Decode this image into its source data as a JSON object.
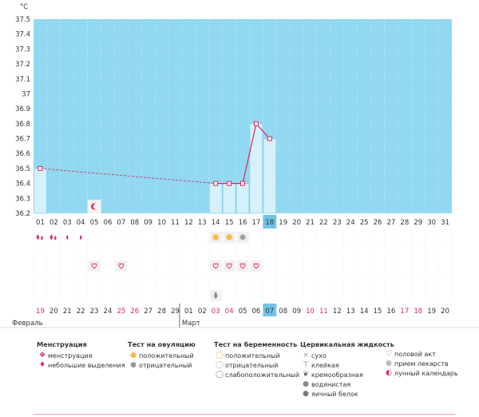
{
  "chart_data": {
    "type": "bar",
    "unit": "°C",
    "ylim": [
      36.2,
      37.5
    ],
    "y_ticks": [
      "37.5",
      "37.4",
      "37.3",
      "37.2",
      "37.1",
      "37",
      "36.9",
      "36.8",
      "36.7",
      "36.6",
      "36.5",
      "36.4",
      "36.3",
      "36.2"
    ],
    "threshold": 37.5,
    "cycle_days": [
      "01",
      "02",
      "03",
      "04",
      "05",
      "06",
      "07",
      "08",
      "09",
      "10",
      "11",
      "12",
      "13",
      "14",
      "15",
      "16",
      "17",
      "18",
      "19",
      "20",
      "21",
      "22",
      "23",
      "24",
      "25",
      "26",
      "27",
      "28",
      "29",
      "30",
      "31"
    ],
    "highlight_day": "18",
    "values": [
      36.5,
      null,
      null,
      null,
      null,
      null,
      null,
      null,
      null,
      null,
      null,
      null,
      null,
      36.4,
      36.4,
      36.4,
      36.8,
      36.7,
      null,
      null,
      null,
      null,
      null,
      null,
      null,
      null,
      null,
      null,
      null,
      null,
      null
    ],
    "calendar_days": [
      "19",
      "20",
      "21",
      "22",
      "23",
      "24",
      "25",
      "26",
      "27",
      "28",
      "29",
      "01",
      "02",
      "03",
      "04",
      "05",
      "06",
      "07",
      "08",
      "09",
      "10",
      "11",
      "12",
      "13",
      "14",
      "15",
      "16",
      "17",
      "18",
      "19",
      "20"
    ],
    "red_calendar_days": [
      0,
      6,
      7,
      13,
      14,
      20,
      21,
      27,
      28
    ],
    "highlight_calendar_index": 17,
    "months": [
      {
        "label": "Февраль",
        "start_index": 0
      },
      {
        "label": "Март",
        "start_index": 11
      }
    ],
    "markers": {
      "menstruation": [
        0,
        1
      ],
      "light_discharge": [
        2,
        3
      ],
      "lunar": [
        4
      ],
      "ovulation_positive": [
        13,
        14
      ],
      "ovulation_negative": [
        15
      ],
      "intercourse": [
        4,
        6,
        13,
        14,
        15,
        16
      ],
      "egg_white": [
        13
      ]
    }
  },
  "legend": [
    {
      "title": "Менструация",
      "items": [
        {
          "icon": "drop-double-icon",
          "label": "менструация"
        },
        {
          "icon": "drop-single-icon",
          "label": "небольшие выделения"
        }
      ]
    },
    {
      "title": "Тест на овуляцию",
      "items": [
        {
          "icon": "sun-positive-icon",
          "label": "положительный"
        },
        {
          "icon": "sun-negative-icon",
          "label": "отрицательный"
        }
      ]
    },
    {
      "title": "Тест на беременность",
      "items": [
        {
          "icon": "pregnancy-positive-icon",
          "label": "положительный"
        },
        {
          "icon": "pregnancy-negative-icon",
          "label": "отрицательный"
        },
        {
          "icon": "pregnancy-weak-icon",
          "label": "слабоположительный"
        }
      ]
    },
    {
      "title": "Цервикальная жидкость",
      "items": [
        {
          "icon": "cross-icon",
          "label": "сухо"
        },
        {
          "icon": "sticky-icon",
          "label": "клейкая"
        },
        {
          "icon": "creamy-icon",
          "label": "кремообразная"
        },
        {
          "icon": "watery-icon",
          "label": "водянистая"
        },
        {
          "icon": "egg-white-icon",
          "label": "яичный белок"
        }
      ]
    },
    {
      "title": "",
      "items": [
        {
          "icon": "heart-icon",
          "label": "половой акт"
        },
        {
          "icon": "pill-icon",
          "label": "прием лекарств"
        },
        {
          "icon": "moon-icon",
          "label": "лунный календарь"
        }
      ]
    }
  ],
  "colors": {
    "sky": "#91d8f0",
    "bar": "#d6f1fb",
    "bar_border": "#6cc6ea",
    "line": "#e0245e",
    "highlight": "#6fc4e6"
  }
}
